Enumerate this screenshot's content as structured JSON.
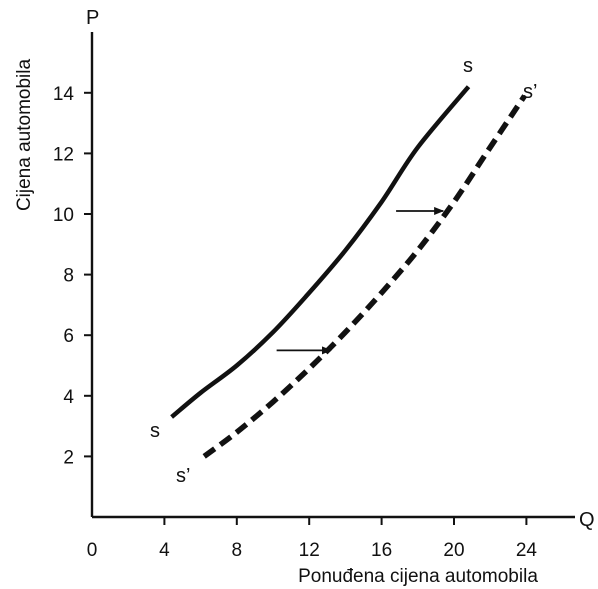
{
  "chart_data": {
    "type": "line",
    "xlabel": "Ponuđena cijena automobila",
    "ylabel": "Cijena automobila",
    "x_axis_letter": "Q",
    "y_axis_letter": "P",
    "xlim": [
      0,
      27
    ],
    "ylim": [
      0,
      16
    ],
    "x_ticks": [
      0,
      4,
      8,
      12,
      16,
      20,
      24
    ],
    "y_ticks": [
      2,
      4,
      6,
      8,
      10,
      12,
      14
    ],
    "grid": false,
    "series": [
      {
        "name": "s",
        "label_start": "s",
        "label_end": "s",
        "style": "solid",
        "color": "#111111",
        "x": [
          4.4,
          6.0,
          8.0,
          10.0,
          12.0,
          14.0,
          16.0,
          18.0,
          20.8
        ],
        "y": [
          3.3,
          4.1,
          5.0,
          6.1,
          7.4,
          8.8,
          10.4,
          12.2,
          14.2
        ]
      },
      {
        "name": "s'",
        "label_start": "s’",
        "label_end": "s’",
        "style": "dashed",
        "color": "#111111",
        "x": [
          6.2,
          8.0,
          10.0,
          12.0,
          14.0,
          16.0,
          18.0,
          20.0,
          22.0,
          23.9
        ],
        "y": [
          2.0,
          2.8,
          3.8,
          4.9,
          6.1,
          7.4,
          8.8,
          10.4,
          12.2,
          13.9
        ]
      }
    ],
    "annotations": [
      {
        "type": "arrow",
        "x1": 10.2,
        "x2": 13.2,
        "y": 5.5
      },
      {
        "type": "arrow",
        "x1": 16.8,
        "x2": 19.4,
        "y": 10.1
      }
    ]
  }
}
